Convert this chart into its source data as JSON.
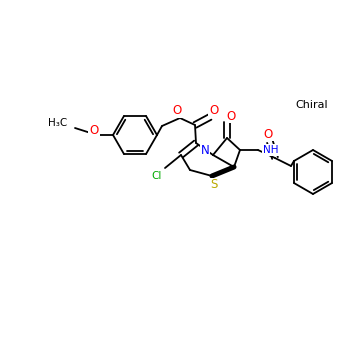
{
  "background_color": "#ffffff",
  "figsize": [
    3.5,
    3.5
  ],
  "dpi": 100,
  "chiral_label": "Chiral",
  "atom_colors": {
    "O": "#ff0000",
    "N": "#0000ff",
    "S": "#bbaa00",
    "Cl": "#00aa00",
    "C": "#000000"
  },
  "bond_color": "#000000",
  "bond_lw": 1.3,
  "font_size": 7.5
}
